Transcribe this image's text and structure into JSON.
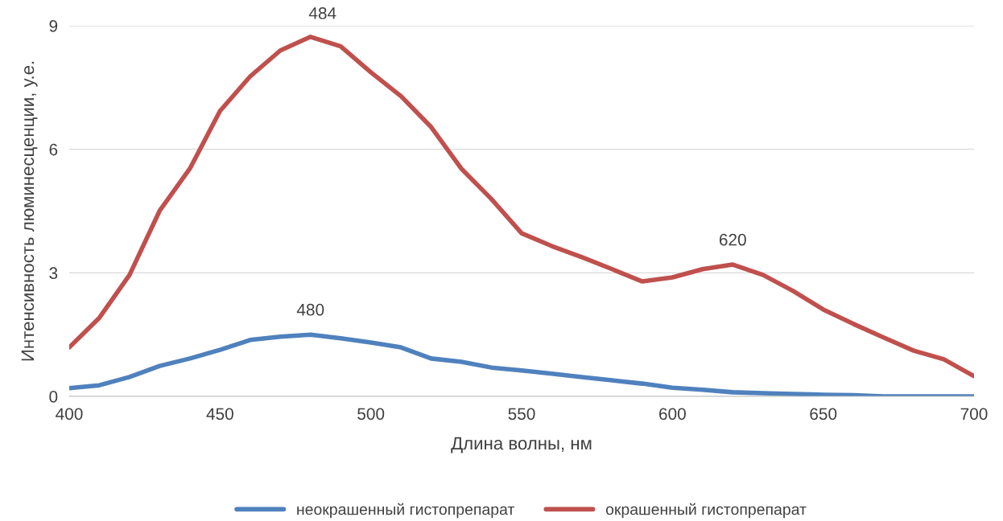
{
  "chart_data": {
    "type": "line",
    "xlabel": "Длина волны, нм",
    "ylabel": "Интенсивность люминесценции, у.е.",
    "x": [
      400,
      410,
      420,
      430,
      440,
      450,
      460,
      470,
      480,
      490,
      500,
      510,
      520,
      530,
      540,
      550,
      560,
      570,
      580,
      590,
      600,
      610,
      620,
      630,
      640,
      650,
      660,
      670,
      680,
      690,
      700
    ],
    "series": [
      {
        "name": "неокрашенный гистопрепарат",
        "color": "#4f81bd",
        "values": [
          0.2,
          0.27,
          0.47,
          0.74,
          0.92,
          1.13,
          1.37,
          1.45,
          1.5,
          1.41,
          1.31,
          1.19,
          0.92,
          0.84,
          0.7,
          0.63,
          0.55,
          0.47,
          0.39,
          0.31,
          0.21,
          0.16,
          0.1,
          0.08,
          0.06,
          0.04,
          0.03,
          0,
          0,
          0,
          0
        ]
      },
      {
        "name": "окрашенный гистопрепарат",
        "color": "#c0504d",
        "values": [
          1.19,
          1.91,
          2.95,
          4.51,
          5.53,
          6.93,
          7.77,
          8.4,
          8.73,
          8.5,
          7.87,
          7.29,
          6.54,
          5.53,
          4.79,
          3.96,
          3.65,
          3.38,
          3.09,
          2.79,
          2.89,
          3.09,
          3.2,
          2.95,
          2.56,
          2.11,
          1.76,
          1.43,
          1.11,
          0.9,
          0.49
        ]
      }
    ],
    "annotations": [
      {
        "text": "484",
        "x": 484,
        "y": 8.7
      },
      {
        "text": "620",
        "x": 620,
        "y": 3.2
      },
      {
        "text": "480",
        "x": 480,
        "y": 1.5
      }
    ],
    "xlim": [
      400,
      700
    ],
    "xticks": [
      400,
      450,
      500,
      550,
      600,
      650,
      700
    ],
    "ylim": [
      0,
      9
    ],
    "yticks": [
      0,
      3,
      6,
      9
    ],
    "grid": "y",
    "legend": "bottom",
    "marker": "none",
    "line_style": "solid"
  }
}
